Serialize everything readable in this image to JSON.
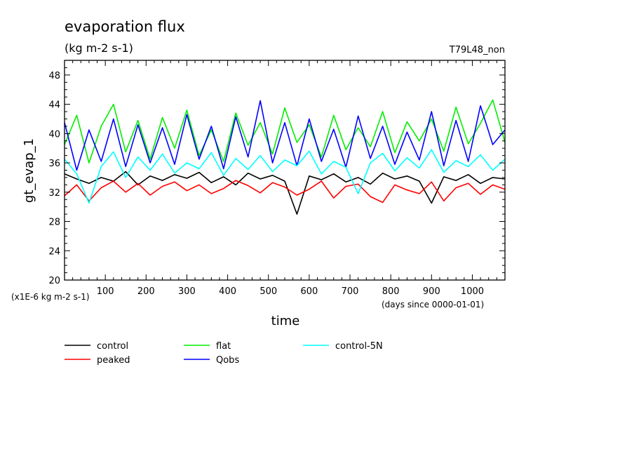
{
  "chart_data": {
    "type": "line",
    "title": "evaporation flux",
    "subtitle": "(kg m-2 s-1)",
    "run_label": "T79L48_non",
    "xlabel": "time",
    "xunits": "(days since 0000-01-01)",
    "ylabel": "gt_evap_1",
    "yscale_note": "(x1E-6 kg m-2 s-1)",
    "xlim": [
      0,
      1080
    ],
    "ylim": [
      20,
      50
    ],
    "x_ticks": [
      100,
      200,
      300,
      400,
      500,
      600,
      700,
      800,
      900,
      1000
    ],
    "x_tick_labels": [
      "100",
      "200",
      "300",
      "400",
      "500",
      "600",
      "700",
      "800",
      "900",
      "1000"
    ],
    "y_ticks": [
      20,
      24,
      28,
      32,
      36,
      40,
      44,
      48
    ],
    "y_tick_labels": [
      "20",
      "24",
      "28",
      "32",
      "36",
      "40",
      "44",
      "48"
    ],
    "grid": false,
    "legend_position": "bottom",
    "x": [
      0,
      30,
      60,
      90,
      120,
      150,
      180,
      210,
      240,
      270,
      300,
      330,
      360,
      390,
      420,
      450,
      480,
      510,
      540,
      570,
      600,
      630,
      660,
      690,
      720,
      750,
      780,
      810,
      840,
      870,
      900,
      930,
      960,
      990,
      1020,
      1050,
      1080
    ],
    "series": [
      {
        "name": "control",
        "color": "#000000",
        "values": [
          34.5,
          33.8,
          33.2,
          34.0,
          33.5,
          34.8,
          33.0,
          34.2,
          33.6,
          34.4,
          33.9,
          34.7,
          33.3,
          34.1,
          33.0,
          34.6,
          33.8,
          34.3,
          33.5,
          29.0,
          34.2,
          33.7,
          34.5,
          33.4,
          34.0,
          33.1,
          34.6,
          33.8,
          34.2,
          33.5,
          30.5,
          34.1,
          33.6,
          34.4,
          33.2,
          34.0,
          33.8
        ]
      },
      {
        "name": "peaked",
        "color": "#ff0000",
        "values": [
          31.5,
          33.0,
          30.8,
          32.6,
          33.5,
          32.0,
          33.2,
          31.6,
          32.8,
          33.4,
          32.2,
          33.0,
          31.8,
          32.5,
          33.6,
          32.9,
          31.9,
          33.3,
          32.7,
          31.6,
          32.4,
          33.5,
          31.2,
          32.8,
          33.1,
          31.4,
          30.6,
          33.0,
          32.3,
          31.8,
          33.4,
          30.8,
          32.6,
          33.2,
          31.7,
          33.0,
          32.4
        ]
      },
      {
        "name": "flat",
        "color": "#00ee00",
        "values": [
          38.5,
          42.5,
          36.0,
          41.0,
          44.0,
          37.5,
          41.8,
          36.5,
          42.2,
          38.0,
          43.2,
          37.0,
          40.5,
          36.2,
          42.8,
          38.4,
          41.5,
          37.2,
          43.5,
          38.8,
          41.2,
          36.8,
          42.5,
          37.8,
          40.8,
          38.2,
          43.0,
          37.4,
          41.6,
          39.0,
          42.0,
          37.6,
          43.6,
          38.6,
          41.4,
          44.6,
          38.8
        ]
      },
      {
        "name": "Qobs",
        "color": "#0000ff",
        "values": [
          41.5,
          35.0,
          40.5,
          36.2,
          42.0,
          35.5,
          41.2,
          36.0,
          40.8,
          35.8,
          42.6,
          36.5,
          41.0,
          35.2,
          42.3,
          36.8,
          44.5,
          36.0,
          41.5,
          35.6,
          42.0,
          36.2,
          40.6,
          35.4,
          42.4,
          36.6,
          41.0,
          35.8,
          40.2,
          36.4,
          43.0,
          35.6,
          41.8,
          36.2,
          43.8,
          38.5,
          40.5
        ]
      },
      {
        "name": "control-5N",
        "color": "#00ffff",
        "values": [
          36.5,
          34.5,
          30.5,
          35.5,
          37.5,
          34.0,
          36.8,
          35.0,
          37.2,
          34.6,
          36.0,
          35.2,
          37.4,
          34.3,
          36.6,
          35.1,
          37.0,
          34.8,
          36.4,
          35.6,
          37.6,
          34.5,
          36.2,
          35.4,
          31.8,
          36.0,
          37.3,
          34.9,
          36.7,
          35.3,
          37.8,
          34.7,
          36.3,
          35.5,
          37.1,
          35.0,
          36.5
        ]
      }
    ]
  }
}
